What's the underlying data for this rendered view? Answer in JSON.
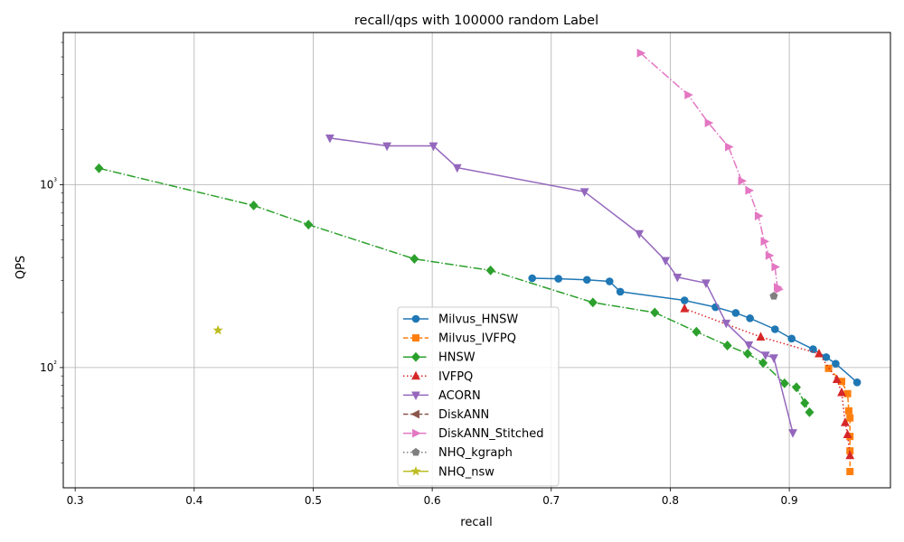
{
  "chart_data": {
    "type": "line",
    "title": "recall/qps with 100000 random Label",
    "xlabel": "recall",
    "ylabel": "QPS",
    "xlim": [
      0.29,
      0.985
    ],
    "ylim": [
      22,
      6800
    ],
    "yscale": "log",
    "grid": true,
    "legend_position": "lower center",
    "x_ticks": [
      0.3,
      0.4,
      0.5,
      0.6,
      0.7,
      0.8,
      0.9
    ],
    "x_tick_labels": [
      "0.3",
      "0.4",
      "0.5",
      "0.6",
      "0.7",
      "0.8",
      "0.9"
    ],
    "y_major_ticks": [
      100,
      1000
    ],
    "y_major_tick_labels": [
      "10²",
      "10³"
    ],
    "y_minor_ticks": [
      30,
      40,
      50,
      60,
      70,
      80,
      90,
      200,
      300,
      400,
      500,
      600,
      700,
      800,
      900,
      2000,
      3000,
      4000,
      5000,
      6000
    ],
    "series": [
      {
        "name": "Milvus_HNSW",
        "color": "#1f77b4",
        "marker": "circle",
        "linestyle": "solid",
        "points": [
          [
            0.684,
            308
          ],
          [
            0.706,
            306
          ],
          [
            0.73,
            302
          ],
          [
            0.749,
            296
          ],
          [
            0.758,
            260
          ],
          [
            0.812,
            233
          ],
          [
            0.838,
            214
          ],
          [
            0.855,
            199
          ],
          [
            0.867,
            186
          ],
          [
            0.888,
            162
          ],
          [
            0.902,
            144
          ],
          [
            0.92,
            126
          ],
          [
            0.931,
            114
          ],
          [
            0.939,
            105
          ],
          [
            0.957,
            83
          ]
        ]
      },
      {
        "name": "Milvus_IVFPQ",
        "color": "#ff7f0e",
        "marker": "square",
        "linestyle": "dashed",
        "points": [
          [
            0.933,
            99
          ],
          [
            0.944,
            84
          ],
          [
            0.949,
            72
          ],
          [
            0.95,
            58
          ],
          [
            0.951,
            53
          ],
          [
            0.951,
            42
          ],
          [
            0.951,
            35
          ],
          [
            0.951,
            27
          ]
        ]
      },
      {
        "name": "HNSW",
        "color": "#2ca02c",
        "marker": "diamond",
        "linestyle": "dashdot",
        "points": [
          [
            0.32,
            1230
          ],
          [
            0.45,
            770
          ],
          [
            0.496,
            605
          ],
          [
            0.585,
            393
          ],
          [
            0.649,
            340
          ],
          [
            0.735,
            227
          ],
          [
            0.787,
            200
          ],
          [
            0.822,
            157
          ],
          [
            0.848,
            132
          ],
          [
            0.865,
            119
          ],
          [
            0.878,
            106
          ],
          [
            0.896,
            82
          ],
          [
            0.906,
            78
          ],
          [
            0.913,
            64
          ],
          [
            0.917,
            57
          ]
        ]
      },
      {
        "name": "IVFPQ",
        "color": "#d62728",
        "marker": "triangle-up",
        "linestyle": "dotted",
        "points": [
          [
            0.812,
            210
          ],
          [
            0.876,
            147
          ],
          [
            0.925,
            119
          ],
          [
            0.94,
            86
          ],
          [
            0.944,
            73
          ],
          [
            0.947,
            50
          ],
          [
            0.949,
            43
          ],
          [
            0.951,
            33
          ]
        ]
      },
      {
        "name": "ACORN",
        "color": "#9467bd",
        "marker": "triangle-down",
        "linestyle": "solid",
        "points": [
          [
            0.514,
            1800
          ],
          [
            0.562,
            1630
          ],
          [
            0.601,
            1630
          ],
          [
            0.621,
            1240
          ],
          [
            0.728,
            915
          ],
          [
            0.774,
            540
          ],
          [
            0.796,
            385
          ],
          [
            0.806,
            312
          ],
          [
            0.83,
            290
          ],
          [
            0.847,
            175
          ],
          [
            0.866,
            133
          ],
          [
            0.88,
            117
          ],
          [
            0.887,
            113
          ],
          [
            0.903,
            44
          ]
        ]
      },
      {
        "name": "DiskANN",
        "color": "#8c564b",
        "marker": "triangle-left",
        "linestyle": "dashed",
        "points": []
      },
      {
        "name": "DiskANN_Stitched",
        "color": "#e377c2",
        "marker": "triangle-right",
        "linestyle": "dashdot",
        "points": [
          [
            0.775,
            5250
          ],
          [
            0.815,
            3100
          ],
          [
            0.832,
            2180
          ],
          [
            0.849,
            1610
          ],
          [
            0.86,
            1050
          ],
          [
            0.866,
            930
          ],
          [
            0.874,
            675
          ],
          [
            0.879,
            490
          ],
          [
            0.883,
            410
          ],
          [
            0.888,
            355
          ],
          [
            0.89,
            275
          ],
          [
            0.891,
            268
          ]
        ]
      },
      {
        "name": "NHQ_kgraph",
        "color": "#7f7f7f",
        "marker": "pentagon",
        "linestyle": "dotted",
        "points": [
          [
            0.887,
            246
          ]
        ]
      },
      {
        "name": "NHQ_nsw",
        "color": "#bcbd22",
        "marker": "star",
        "linestyle": "solid",
        "points": [
          [
            0.42,
            160
          ]
        ]
      }
    ]
  }
}
